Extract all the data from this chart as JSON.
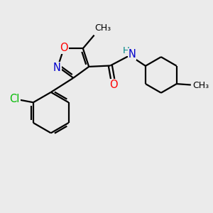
{
  "background_color": "#ebebeb",
  "line_color": "#000000",
  "bond_width": 1.6,
  "atom_colors": {
    "O": "#ff0000",
    "N": "#0000cc",
    "Cl": "#00bb00",
    "C": "#000000",
    "H": "#008888"
  },
  "font_size": 9.5,
  "fig_width": 3.0,
  "fig_height": 3.0,
  "xlim": [
    0,
    10
  ],
  "ylim": [
    0,
    10
  ]
}
